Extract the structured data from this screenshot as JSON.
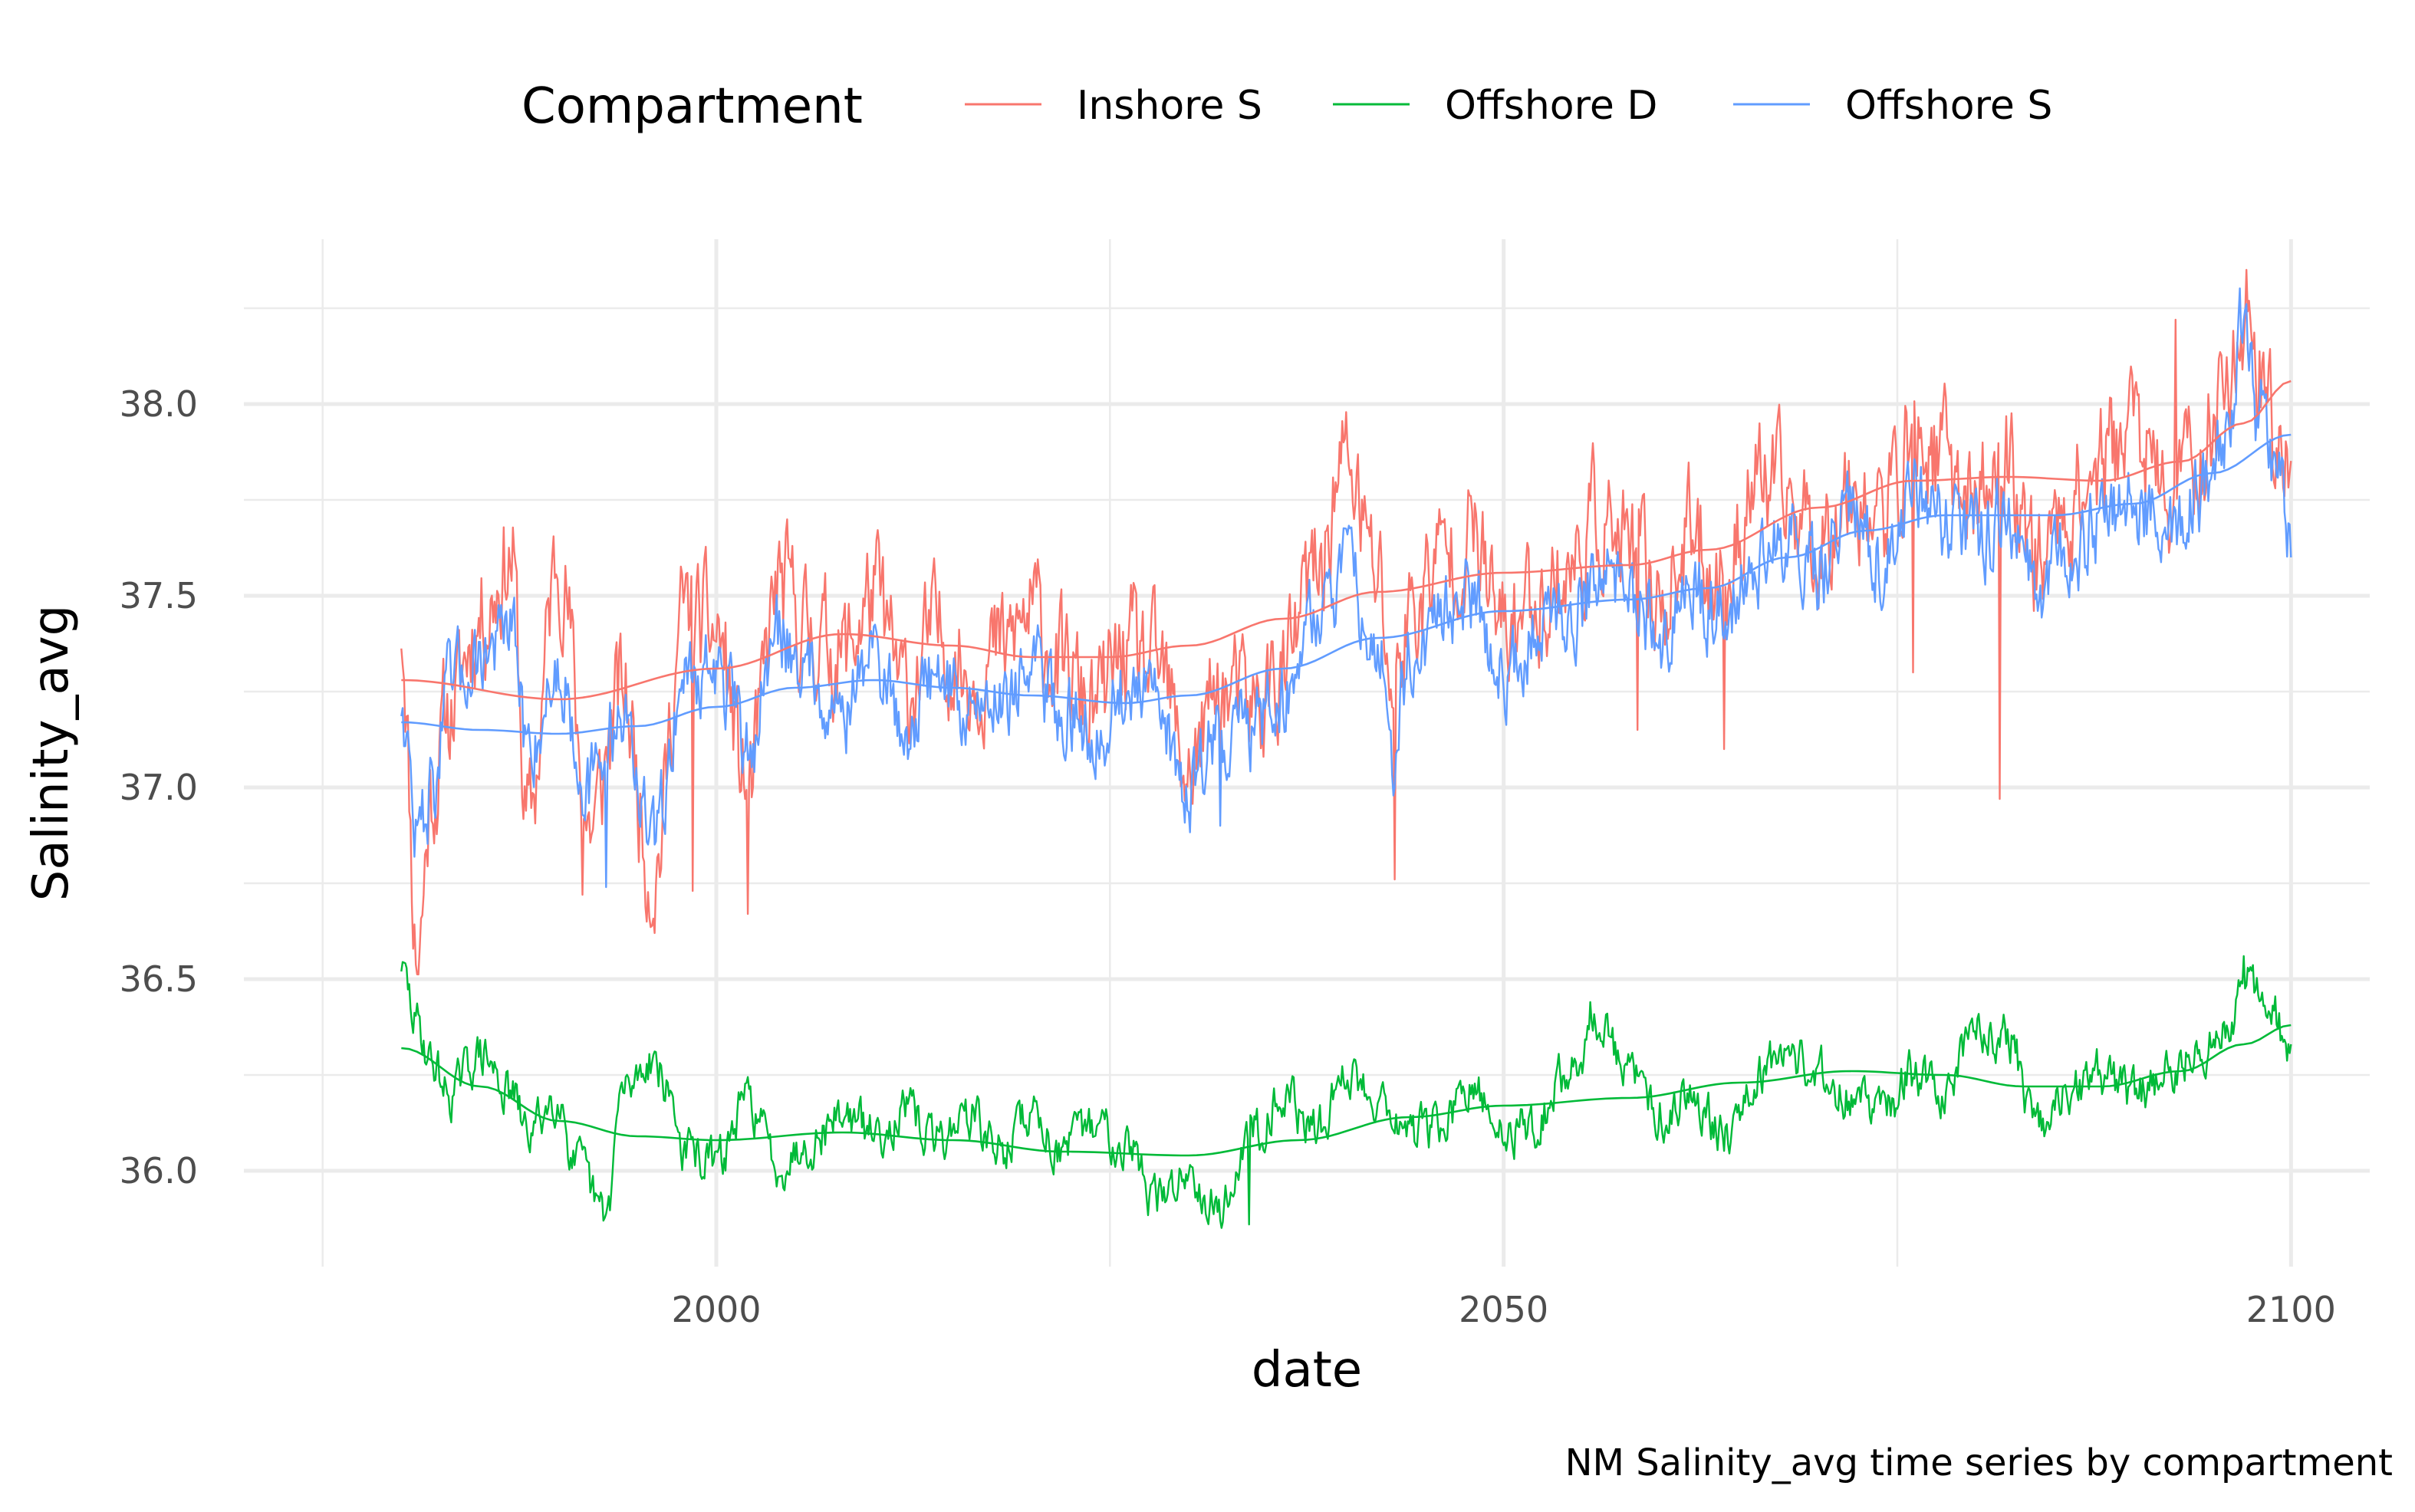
{
  "chart_data": {
    "type": "line",
    "title": "",
    "caption": "NM Salinity_avg time series by compartment",
    "xlabel": "date",
    "ylabel": "Salinity_avg",
    "xlim": [
      1970,
      2105
    ],
    "ylim": [
      35.75,
      38.43
    ],
    "x_ticks": [
      "2000",
      "2050",
      "2100"
    ],
    "y_ticks": [
      "36.0",
      "36.5",
      "37.0",
      "37.5",
      "38.0"
    ],
    "grid": true,
    "legend": {
      "title": "Compartment",
      "position": "top",
      "entries": [
        "Inshore S",
        "Offshore D",
        "Offshore S"
      ]
    },
    "colors": {
      "Inshore S": "#F8766D",
      "Offshore D": "#00BA38",
      "Offshore S": "#619CFF"
    },
    "x_start": 1980,
    "x_end": 2100,
    "series": [
      {
        "name": "Inshore S",
        "knots": [
          [
            1980,
            37.43
          ],
          [
            1981,
            36.58
          ],
          [
            1982,
            37.0
          ],
          [
            1983,
            37.2
          ],
          [
            1985,
            37.45
          ],
          [
            1987,
            37.6
          ],
          [
            1988,
            36.9
          ],
          [
            1990,
            37.6
          ],
          [
            1992,
            36.9
          ],
          [
            1994,
            37.25
          ],
          [
            1996,
            36.78
          ],
          [
            1998,
            37.45
          ],
          [
            2000,
            37.4
          ],
          [
            2002,
            37.0
          ],
          [
            2004,
            37.52
          ],
          [
            2006,
            37.4
          ],
          [
            2008,
            37.35
          ],
          [
            2010,
            37.5
          ],
          [
            2012,
            37.25
          ],
          [
            2014,
            37.4
          ],
          [
            2016,
            37.3
          ],
          [
            2018,
            37.35
          ],
          [
            2020,
            37.45
          ],
          [
            2022,
            37.3
          ],
          [
            2024,
            37.2
          ],
          [
            2026,
            37.35
          ],
          [
            2028,
            37.3
          ],
          [
            2030,
            37.05
          ],
          [
            2032,
            37.25
          ],
          [
            2034,
            37.2
          ],
          [
            2036,
            37.3
          ],
          [
            2038,
            37.55
          ],
          [
            2040,
            37.85
          ],
          [
            2042,
            37.55
          ],
          [
            2043,
            37.25
          ],
          [
            2044,
            37.45
          ],
          [
            2046,
            37.6
          ],
          [
            2048,
            37.65
          ],
          [
            2050,
            37.4
          ],
          [
            2052,
            37.5
          ],
          [
            2054,
            37.55
          ],
          [
            2056,
            37.7
          ],
          [
            2058,
            37.6
          ],
          [
            2060,
            37.5
          ],
          [
            2062,
            37.65
          ],
          [
            2064,
            37.55
          ],
          [
            2066,
            37.8
          ],
          [
            2068,
            37.75
          ],
          [
            2070,
            37.65
          ],
          [
            2072,
            37.8
          ],
          [
            2074,
            37.7
          ],
          [
            2076,
            37.9
          ],
          [
            2078,
            37.85
          ],
          [
            2080,
            37.75
          ],
          [
            2082,
            37.85
          ],
          [
            2084,
            37.6
          ],
          [
            2086,
            37.75
          ],
          [
            2088,
            37.85
          ],
          [
            2090,
            37.95
          ],
          [
            2092,
            37.75
          ],
          [
            2094,
            37.85
          ],
          [
            2096,
            38.05
          ],
          [
            2097,
            38.25
          ],
          [
            2098,
            38.1
          ],
          [
            2099,
            37.9
          ],
          [
            2100,
            37.9
          ]
        ],
        "spikes": [
          [
            1981.2,
            36.58
          ],
          [
            2002.0,
            36.67
          ],
          [
            2043.1,
            36.76
          ],
          [
            2064.0,
            37.1
          ],
          [
            2081.5,
            36.97
          ],
          [
            2076.0,
            37.3
          ],
          [
            2058.5,
            37.15
          ],
          [
            2097.2,
            38.35
          ],
          [
            2092.7,
            38.22
          ],
          [
            2039.8,
            37.9
          ],
          [
            1998.5,
            36.73
          ],
          [
            1991.5,
            36.72
          ]
        ],
        "noise": 0.13,
        "seed": 11,
        "trend": [
          [
            1980,
            37.28
          ],
          [
            1990,
            37.23
          ],
          [
            2000,
            37.31
          ],
          [
            2008,
            37.4
          ],
          [
            2015,
            37.37
          ],
          [
            2020,
            37.34
          ],
          [
            2025,
            37.34
          ],
          [
            2030,
            37.37
          ],
          [
            2036,
            37.44
          ],
          [
            2042,
            37.51
          ],
          [
            2050,
            37.56
          ],
          [
            2058,
            37.58
          ],
          [
            2063,
            37.62
          ],
          [
            2070,
            37.73
          ],
          [
            2076,
            37.8
          ],
          [
            2082,
            37.81
          ],
          [
            2088,
            37.8
          ],
          [
            2093,
            37.85
          ],
          [
            2097,
            37.95
          ],
          [
            2100,
            38.06
          ]
        ]
      },
      {
        "name": "Offshore D",
        "knots": [
          [
            1980,
            36.52
          ],
          [
            1981,
            36.38
          ],
          [
            1982,
            36.28
          ],
          [
            1983,
            36.2
          ],
          [
            1985,
            36.3
          ],
          [
            1987,
            36.2
          ],
          [
            1988,
            36.1
          ],
          [
            1990,
            36.2
          ],
          [
            1991,
            36.02
          ],
          [
            1993,
            35.88
          ],
          [
            1994,
            36.2
          ],
          [
            1996,
            36.3
          ],
          [
            1997,
            36.2
          ],
          [
            1998,
            36.05
          ],
          [
            2000,
            36.02
          ],
          [
            2002,
            36.18
          ],
          [
            2004,
            36.02
          ],
          [
            2006,
            36.08
          ],
          [
            2008,
            36.15
          ],
          [
            2010,
            36.1
          ],
          [
            2012,
            36.15
          ],
          [
            2014,
            36.08
          ],
          [
            2016,
            36.15
          ],
          [
            2018,
            36.05
          ],
          [
            2020,
            36.15
          ],
          [
            2022,
            36.05
          ],
          [
            2024,
            36.12
          ],
          [
            2026,
            36.08
          ],
          [
            2028,
            35.92
          ],
          [
            2030,
            36.0
          ],
          [
            2032,
            35.9
          ],
          [
            2034,
            36.1
          ],
          [
            2036,
            36.2
          ],
          [
            2038,
            36.1
          ],
          [
            2040,
            36.25
          ],
          [
            2042,
            36.2
          ],
          [
            2044,
            36.1
          ],
          [
            2046,
            36.12
          ],
          [
            2048,
            36.2
          ],
          [
            2050,
            36.1
          ],
          [
            2052,
            36.12
          ],
          [
            2054,
            36.25
          ],
          [
            2056,
            36.38
          ],
          [
            2058,
            36.25
          ],
          [
            2060,
            36.15
          ],
          [
            2062,
            36.2
          ],
          [
            2064,
            36.1
          ],
          [
            2066,
            36.25
          ],
          [
            2068,
            36.32
          ],
          [
            2070,
            36.25
          ],
          [
            2072,
            36.2
          ],
          [
            2074,
            36.15
          ],
          [
            2076,
            36.25
          ],
          [
            2078,
            36.2
          ],
          [
            2080,
            36.38
          ],
          [
            2082,
            36.35
          ],
          [
            2084,
            36.1
          ],
          [
            2086,
            36.2
          ],
          [
            2088,
            36.25
          ],
          [
            2090,
            36.2
          ],
          [
            2092,
            36.25
          ],
          [
            2094,
            36.3
          ],
          [
            2096,
            36.35
          ],
          [
            2097,
            36.55
          ],
          [
            2098,
            36.45
          ],
          [
            2099,
            36.4
          ],
          [
            2100,
            36.28
          ]
        ],
        "spikes": [
          [
            1980.0,
            36.52
          ],
          [
            2097.0,
            36.56
          ],
          [
            2055.5,
            36.44
          ],
          [
            1992.8,
            35.87
          ],
          [
            2033.8,
            35.86
          ]
        ],
        "noise": 0.05,
        "seed": 29,
        "trend": [
          [
            1980,
            36.32
          ],
          [
            1985,
            36.22
          ],
          [
            1990,
            36.13
          ],
          [
            1995,
            36.09
          ],
          [
            2000,
            36.08
          ],
          [
            2008,
            36.1
          ],
          [
            2015,
            36.08
          ],
          [
            2022,
            36.05
          ],
          [
            2030,
            36.04
          ],
          [
            2037,
            36.08
          ],
          [
            2044,
            36.14
          ],
          [
            2050,
            36.17
          ],
          [
            2058,
            36.19
          ],
          [
            2065,
            36.23
          ],
          [
            2072,
            36.26
          ],
          [
            2078,
            36.25
          ],
          [
            2083,
            36.22
          ],
          [
            2088,
            36.22
          ],
          [
            2093,
            36.26
          ],
          [
            2097,
            36.33
          ],
          [
            2100,
            36.38
          ]
        ]
      },
      {
        "name": "Offshore S",
        "knots": [
          [
            1980,
            37.23
          ],
          [
            1981,
            36.88
          ],
          [
            1982,
            37.0
          ],
          [
            1983,
            37.25
          ],
          [
            1985,
            37.35
          ],
          [
            1987,
            37.4
          ],
          [
            1988,
            37.1
          ],
          [
            1990,
            37.3
          ],
          [
            1992,
            37.0
          ],
          [
            1994,
            37.2
          ],
          [
            1996,
            36.85
          ],
          [
            1998,
            37.3
          ],
          [
            2000,
            37.3
          ],
          [
            2002,
            37.1
          ],
          [
            2004,
            37.4
          ],
          [
            2006,
            37.3
          ],
          [
            2008,
            37.2
          ],
          [
            2010,
            37.35
          ],
          [
            2012,
            37.15
          ],
          [
            2014,
            37.3
          ],
          [
            2016,
            37.2
          ],
          [
            2018,
            37.25
          ],
          [
            2020,
            37.3
          ],
          [
            2022,
            37.2
          ],
          [
            2024,
            37.15
          ],
          [
            2026,
            37.25
          ],
          [
            2028,
            37.2
          ],
          [
            2030,
            37.0
          ],
          [
            2032,
            37.15
          ],
          [
            2034,
            37.15
          ],
          [
            2036,
            37.25
          ],
          [
            2038,
            37.45
          ],
          [
            2040,
            37.55
          ],
          [
            2042,
            37.4
          ],
          [
            2043,
            37.05
          ],
          [
            2044,
            37.35
          ],
          [
            2046,
            37.45
          ],
          [
            2048,
            37.5
          ],
          [
            2050,
            37.3
          ],
          [
            2052,
            37.4
          ],
          [
            2054,
            37.45
          ],
          [
            2056,
            37.55
          ],
          [
            2058,
            37.5
          ],
          [
            2060,
            37.4
          ],
          [
            2062,
            37.5
          ],
          [
            2064,
            37.45
          ],
          [
            2066,
            37.6
          ],
          [
            2068,
            37.65
          ],
          [
            2070,
            37.55
          ],
          [
            2072,
            37.7
          ],
          [
            2074,
            37.6
          ],
          [
            2076,
            37.75
          ],
          [
            2078,
            37.7
          ],
          [
            2080,
            37.65
          ],
          [
            2082,
            37.7
          ],
          [
            2084,
            37.5
          ],
          [
            2086,
            37.6
          ],
          [
            2088,
            37.7
          ],
          [
            2090,
            37.75
          ],
          [
            2092,
            37.65
          ],
          [
            2094,
            37.75
          ],
          [
            2096,
            37.9
          ],
          [
            2097,
            38.2
          ],
          [
            2098,
            37.95
          ],
          [
            2099,
            37.8
          ],
          [
            2100,
            37.65
          ]
        ],
        "spikes": [
          [
            2097.0,
            38.22
          ],
          [
            2100.0,
            37.6
          ],
          [
            1993.0,
            36.74
          ],
          [
            2043.1,
            37.0
          ],
          [
            2032.0,
            36.9
          ]
        ],
        "noise": 0.09,
        "seed": 47,
        "trend": [
          [
            1980,
            37.17
          ],
          [
            1985,
            37.15
          ],
          [
            1990,
            37.14
          ],
          [
            1995,
            37.16
          ],
          [
            2000,
            37.21
          ],
          [
            2005,
            37.26
          ],
          [
            2010,
            37.28
          ],
          [
            2015,
            37.26
          ],
          [
            2020,
            37.24
          ],
          [
            2026,
            37.22
          ],
          [
            2030,
            37.24
          ],
          [
            2036,
            37.31
          ],
          [
            2042,
            37.39
          ],
          [
            2050,
            37.46
          ],
          [
            2058,
            37.49
          ],
          [
            2063,
            37.52
          ],
          [
            2068,
            37.6
          ],
          [
            2073,
            37.67
          ],
          [
            2078,
            37.71
          ],
          [
            2085,
            37.71
          ],
          [
            2090,
            37.74
          ],
          [
            2095,
            37.82
          ],
          [
            2100,
            37.92
          ]
        ]
      }
    ]
  }
}
